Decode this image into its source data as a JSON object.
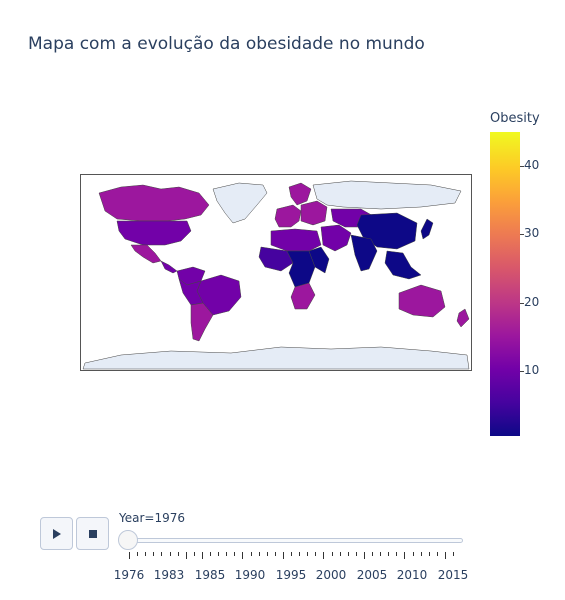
{
  "title": "Mapa com a evolução da obesidade no mundo",
  "colorbar": {
    "title": "Obesity",
    "ticks": [
      "10",
      "20",
      "30",
      "40"
    ],
    "tick_values": [
      10,
      20,
      30,
      40
    ],
    "range": [
      0.5,
      45
    ],
    "colorscale": [
      "#0d0887",
      "#46039f",
      "#7201a8",
      "#9c179e",
      "#bd3786",
      "#d8576b",
      "#ed7953",
      "#fb9f3a",
      "#fdca26",
      "#f0f921"
    ]
  },
  "controls": {
    "play_icon": "play-icon",
    "stop_icon": "stop-icon"
  },
  "slider": {
    "current_label": "Year=1976",
    "current_year": 1976,
    "year_min": 1976,
    "year_max": 2016,
    "labeled_years": [
      "1976",
      "1983",
      "1985",
      "1990",
      "1995",
      "2000",
      "2005",
      "2010",
      "2015"
    ]
  },
  "chart_data": {
    "type": "choropleth",
    "title": "Mapa com a evolução da obesidade no mundo",
    "frame": "Year=1976",
    "color_variable": "Obesity",
    "color_range": [
      0.5,
      45
    ],
    "no_data_color": "#e5ecf6",
    "regions": [
      {
        "name": "Canada",
        "value": 14
      },
      {
        "name": "United States",
        "value": 12
      },
      {
        "name": "Greenland",
        "value": null
      },
      {
        "name": "Mexico",
        "value": 13
      },
      {
        "name": "Central America",
        "value": 11
      },
      {
        "name": "Colombia / Venezuela",
        "value": 9
      },
      {
        "name": "Brazil",
        "value": 8
      },
      {
        "name": "Peru / Bolivia",
        "value": 9
      },
      {
        "name": "Argentina / Chile",
        "value": 14
      },
      {
        "name": "Western Europe",
        "value": 14
      },
      {
        "name": "Scandinavia",
        "value": 13
      },
      {
        "name": "Eastern Europe",
        "value": 15
      },
      {
        "name": "Russia",
        "value": null
      },
      {
        "name": "North Africa",
        "value": 10
      },
      {
        "name": "Middle East",
        "value": 12
      },
      {
        "name": "West Africa",
        "value": 3
      },
      {
        "name": "Central Africa",
        "value": 2
      },
      {
        "name": "East Africa",
        "value": 2
      },
      {
        "name": "Southern Africa",
        "value": 16
      },
      {
        "name": "Central Asia",
        "value": 10
      },
      {
        "name": "China",
        "value": 1
      },
      {
        "name": "India",
        "value": 2
      },
      {
        "name": "Southeast Asia",
        "value": 2
      },
      {
        "name": "Japan",
        "value": 2
      },
      {
        "name": "Australia",
        "value": 14
      },
      {
        "name": "New Zealand",
        "value": 16
      },
      {
        "name": "Antarctica",
        "value": null
      }
    ]
  }
}
